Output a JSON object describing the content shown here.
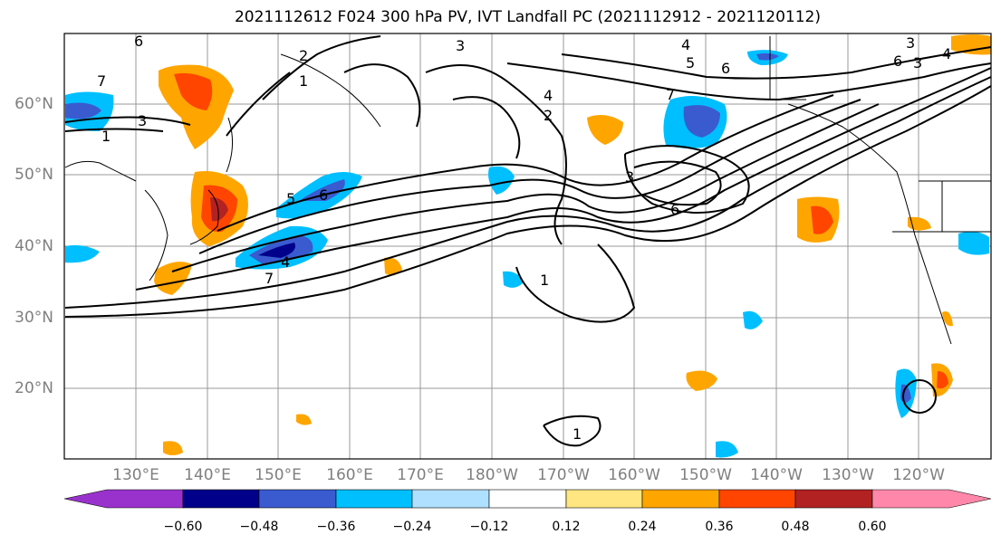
{
  "title": "2021112612 F024 300 hPa PV, IVT Landfall PC (2021112912 - 2021120112)",
  "lat_labels": [
    "60°N",
    "50°N",
    "40°N",
    "30°N",
    "20°N"
  ],
  "lon_labels": [
    "130°E",
    "140°E",
    "150°E",
    "160°E",
    "170°E",
    "180°W",
    "170°W",
    "160°W",
    "150°W",
    "140°W",
    "130°W",
    "120°W"
  ],
  "contour_labels": [
    "1",
    "2",
    "3",
    "4",
    "5",
    "6",
    "7"
  ],
  "colorbar": {
    "ticks": [
      "−0.60",
      "−0.48",
      "−0.36",
      "−0.24",
      "−0.12",
      "0.12",
      "0.24",
      "0.36",
      "0.48",
      "0.60"
    ],
    "colors": [
      "#9932cc",
      "#00008b",
      "#3a5bd0",
      "#00bfff",
      "#b0e0ff",
      "#ffffff",
      "#ffe680",
      "#ffa500",
      "#ff4500",
      "#b22222",
      "#ff88aa",
      "#ff88aa"
    ]
  }
}
